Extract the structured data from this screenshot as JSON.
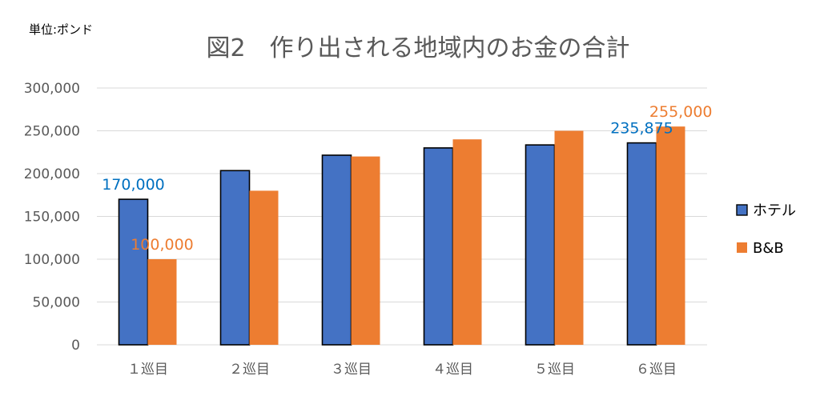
{
  "chart_data": {
    "type": "bar",
    "title": "図2　作り出される地域内のお金の合計",
    "unit_label": "単位:ポンド",
    "categories": [
      "１巡目",
      "２巡目",
      "３巡目",
      "４巡目",
      "５巡目",
      "６巡目"
    ],
    "series": [
      {
        "name": "ホテル",
        "color": "#4472C4",
        "values": [
          170000,
          203500,
          221500,
          230000,
          233500,
          235875
        ]
      },
      {
        "name": "B&B",
        "color": "#ED7D31",
        "values": [
          100000,
          180000,
          220000,
          240000,
          250000,
          255000
        ]
      }
    ],
    "ylim": [
      0,
      300000
    ],
    "yticks": [
      0,
      50000,
      100000,
      150000,
      200000,
      250000,
      300000
    ],
    "ytick_labels": [
      "0",
      "50,000",
      "100,000",
      "150,000",
      "200,000",
      "250,000",
      "300,000"
    ],
    "grid": true,
    "legend_position": "right",
    "data_labels": [
      {
        "series": 0,
        "index": 0,
        "text": "170,000",
        "color": "#0070C0"
      },
      {
        "series": 1,
        "index": 0,
        "text": "100,000",
        "color": "#ED7D31"
      },
      {
        "series": 0,
        "index": 5,
        "text": "235,875",
        "color": "#0070C0"
      },
      {
        "series": 1,
        "index": 5,
        "text": "255,000",
        "color": "#ED7D31"
      }
    ]
  }
}
